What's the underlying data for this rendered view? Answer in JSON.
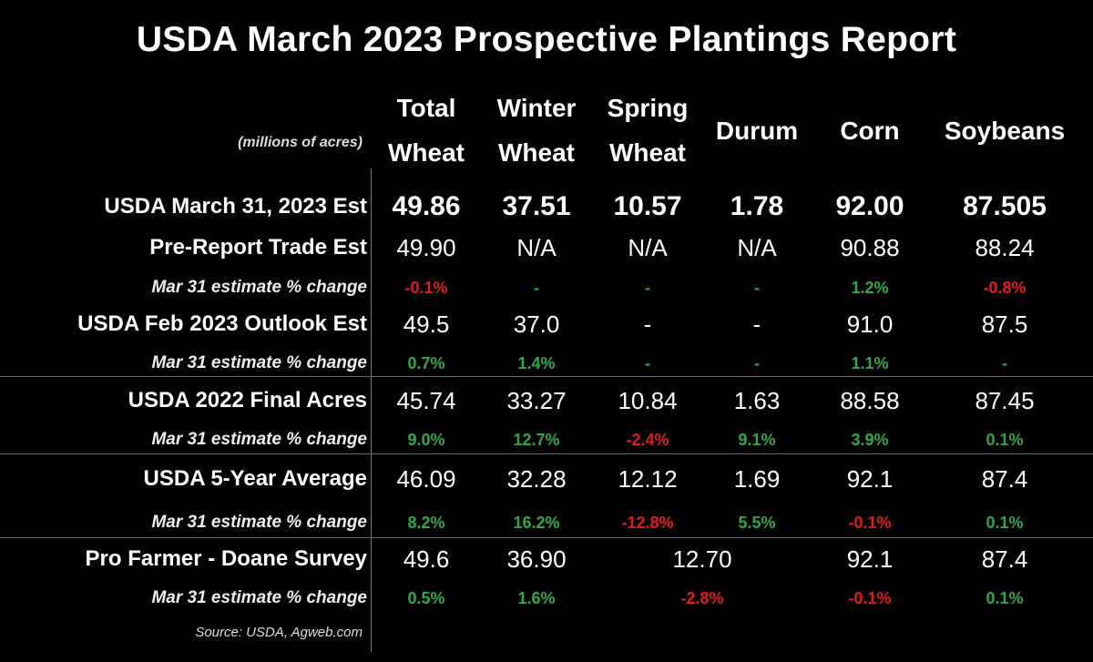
{
  "title": "USDA March 2023 Prospective Plantings Report",
  "units_label": "(millions of acres)",
  "source": "Source: USDA, Agweb.com",
  "colors": {
    "positive": "#2ea84a",
    "negative": "#e21a1a",
    "background": "#000000"
  },
  "chart_data": {
    "type": "table",
    "title": "USDA March 2023 Prospective Plantings Report",
    "columns": [
      {
        "line1": "Total",
        "line2": "Wheat"
      },
      {
        "line1": "Winter",
        "line2": "Wheat"
      },
      {
        "line1": "Spring",
        "line2": "Wheat"
      },
      {
        "line1": "Durum",
        "line2": ""
      },
      {
        "line1": "Corn",
        "line2": ""
      },
      {
        "line1": "Soybeans",
        "line2": ""
      }
    ],
    "rows": [
      {
        "label": "USDA March 31, 2023 Est",
        "kind": "value_bold",
        "cells": [
          "49.86",
          "37.51",
          "10.57",
          "1.78",
          "92.00",
          "87.505"
        ]
      },
      {
        "label": "Pre-Report Trade Est",
        "kind": "value",
        "cells": [
          "49.90",
          "N/A",
          "N/A",
          "N/A",
          "90.88",
          "88.24"
        ]
      },
      {
        "label": "Mar 31 estimate % change",
        "kind": "pct",
        "cells": [
          "-0.1%",
          "-",
          "-",
          "-",
          "1.2%",
          "-0.8%"
        ]
      },
      {
        "label": "USDA Feb 2023 Outlook Est",
        "kind": "value",
        "cells": [
          "49.5",
          "37.0",
          "-",
          "-",
          "91.0",
          "87.5"
        ]
      },
      {
        "label": "Mar 31 estimate % change",
        "kind": "pct",
        "cells": [
          "0.7%",
          "1.4%",
          "-",
          "-",
          "1.1%",
          "-"
        ]
      },
      {
        "label": "USDA 2022 Final Acres",
        "kind": "value",
        "cells": [
          "45.74",
          "33.27",
          "10.84",
          "1.63",
          "88.58",
          "87.45"
        ]
      },
      {
        "label": "Mar 31 estimate % change",
        "kind": "pct",
        "cells": [
          "9.0%",
          "12.7%",
          "-2.4%",
          "9.1%",
          "3.9%",
          "0.1%"
        ]
      },
      {
        "label": "USDA 5-Year Average",
        "kind": "value",
        "cells": [
          "46.09",
          "32.28",
          "12.12",
          "1.69",
          "92.1",
          "87.4"
        ]
      },
      {
        "label": "Mar 31 estimate % change",
        "kind": "pct",
        "cells": [
          "8.2%",
          "16.2%",
          "-12.8%",
          "5.5%",
          "-0.1%",
          "0.1%"
        ]
      },
      {
        "label": "Pro Farmer - Doane Survey",
        "kind": "value",
        "cells": [
          "49.6",
          "36.90",
          "12.70",
          null,
          "92.1",
          "87.4"
        ],
        "merged_spring_durum": true
      },
      {
        "label": "Mar 31 estimate % change",
        "kind": "pct",
        "cells": [
          "0.5%",
          "1.6%",
          "-2.8%",
          null,
          "-0.1%",
          "0.1%"
        ],
        "merged_spring_durum": true
      }
    ]
  }
}
